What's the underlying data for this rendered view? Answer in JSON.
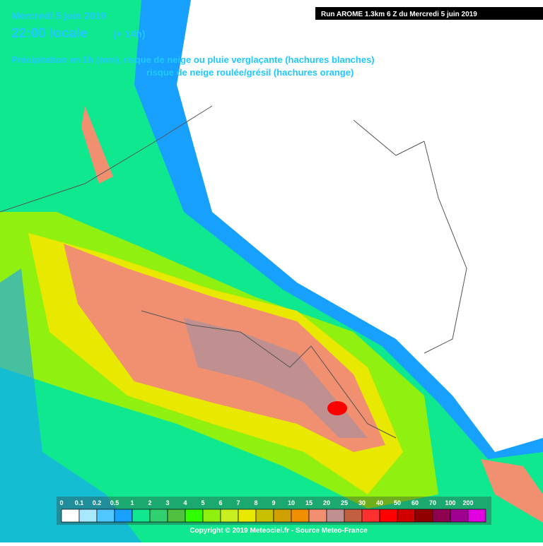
{
  "header": {
    "date": "Mercredi 5 juin 2019",
    "time": "22:00 locale",
    "offset": "(+ 14h)",
    "line1": "Précipitation en 1h (mm), risque de neige ou pluie verglaçante (hachures blanches)",
    "line2": "risque de neige roulée/grésil (hachures orange)",
    "run": "Run AROME 1.3km 6 Z du Mercredi 5 juin 2019"
  },
  "legend": {
    "items": [
      {
        "label": "0",
        "color": "#ffffff"
      },
      {
        "label": "0.1",
        "color": "#a8e8ff"
      },
      {
        "label": "0.2",
        "color": "#50c8ff"
      },
      {
        "label": "0.5",
        "color": "#18a0ff"
      },
      {
        "label": "1",
        "color": "#10e890"
      },
      {
        "label": "2",
        "color": "#30d070"
      },
      {
        "label": "3",
        "color": "#50c040"
      },
      {
        "label": "4",
        "color": "#30ff00"
      },
      {
        "label": "5",
        "color": "#90f010"
      },
      {
        "label": "6",
        "color": "#c8f020"
      },
      {
        "label": "7",
        "color": "#e8e800"
      },
      {
        "label": "8",
        "color": "#c8c000"
      },
      {
        "label": "9",
        "color": "#d0a000"
      },
      {
        "label": "10",
        "color": "#f09000"
      },
      {
        "label": "15",
        "color": "#f09070"
      },
      {
        "label": "20",
        "color": "#c09090"
      },
      {
        "label": "25",
        "color": "#c06040"
      },
      {
        "label": "30",
        "color": "#ff3030"
      },
      {
        "label": "40",
        "color": "#ff0000"
      },
      {
        "label": "50",
        "color": "#d00000"
      },
      {
        "label": "60",
        "color": "#900000"
      },
      {
        "label": "70",
        "color": "#900050"
      },
      {
        "label": "100",
        "color": "#a00090"
      },
      {
        "label": "200",
        "color": "#e000e0"
      }
    ]
  },
  "footer": "Copyright © 2019 Meteociel.fr - Source Meteo-France"
}
